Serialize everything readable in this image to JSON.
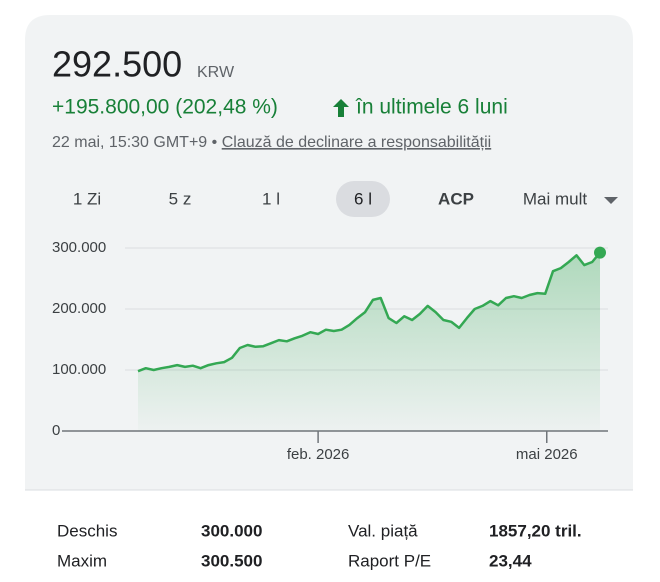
{
  "header": {
    "price": "292.500",
    "currency": "KRW",
    "change": "+195.800,00 (202,48 %)",
    "period": "în ultimele 6 luni",
    "timestamp": "22 mai, 15:30 GMT+9",
    "separator": "•",
    "disclaimer": "Clauză de declinare a responsabilității"
  },
  "tabs": [
    {
      "label": "1 Zi",
      "selected": false
    },
    {
      "label": "5 z",
      "selected": false
    },
    {
      "label": "1 l",
      "selected": false
    },
    {
      "label": "6 l",
      "selected": true
    },
    {
      "label": "ACP",
      "selected": false
    },
    {
      "label": "Mai mult",
      "selected": false
    }
  ],
  "chart_data": {
    "type": "line",
    "color": "#34a853",
    "values": [
      98000,
      103000,
      100000,
      103000,
      105000,
      108000,
      105000,
      107000,
      103000,
      108000,
      111000,
      113000,
      120000,
      136000,
      141000,
      138000,
      139000,
      144000,
      149000,
      147000,
      152000,
      156000,
      162000,
      159000,
      166000,
      164000,
      166000,
      174000,
      185000,
      195000,
      215000,
      218000,
      185000,
      177000,
      188000,
      182000,
      192000,
      205000,
      195000,
      182000,
      179000,
      169000,
      185000,
      200000,
      205000,
      213000,
      206000,
      218000,
      221000,
      218000,
      223000,
      226000,
      225000,
      262000,
      267000,
      277000,
      288000,
      272000,
      277000,
      292500
    ],
    "xlim": [
      0,
      59
    ],
    "xticks": [
      {
        "value": 23,
        "label": "feb. 2026"
      },
      {
        "value": 52.2,
        "label": "mai 2026"
      }
    ],
    "ylim": [
      0,
      300000
    ],
    "yticks": [
      0,
      {
        "value": 100000,
        "label": "100.000"
      },
      {
        "value": 200000,
        "label": "200.000"
      },
      {
        "value": 300000,
        "label": "300.000"
      }
    ],
    "grid": true
  },
  "stats": {
    "rows": [
      [
        "Deschis",
        "300.000",
        "Val. piață",
        "1857,20 tril."
      ],
      [
        "Maxim",
        "300.500",
        "Raport P/E",
        "23,44"
      ]
    ]
  }
}
